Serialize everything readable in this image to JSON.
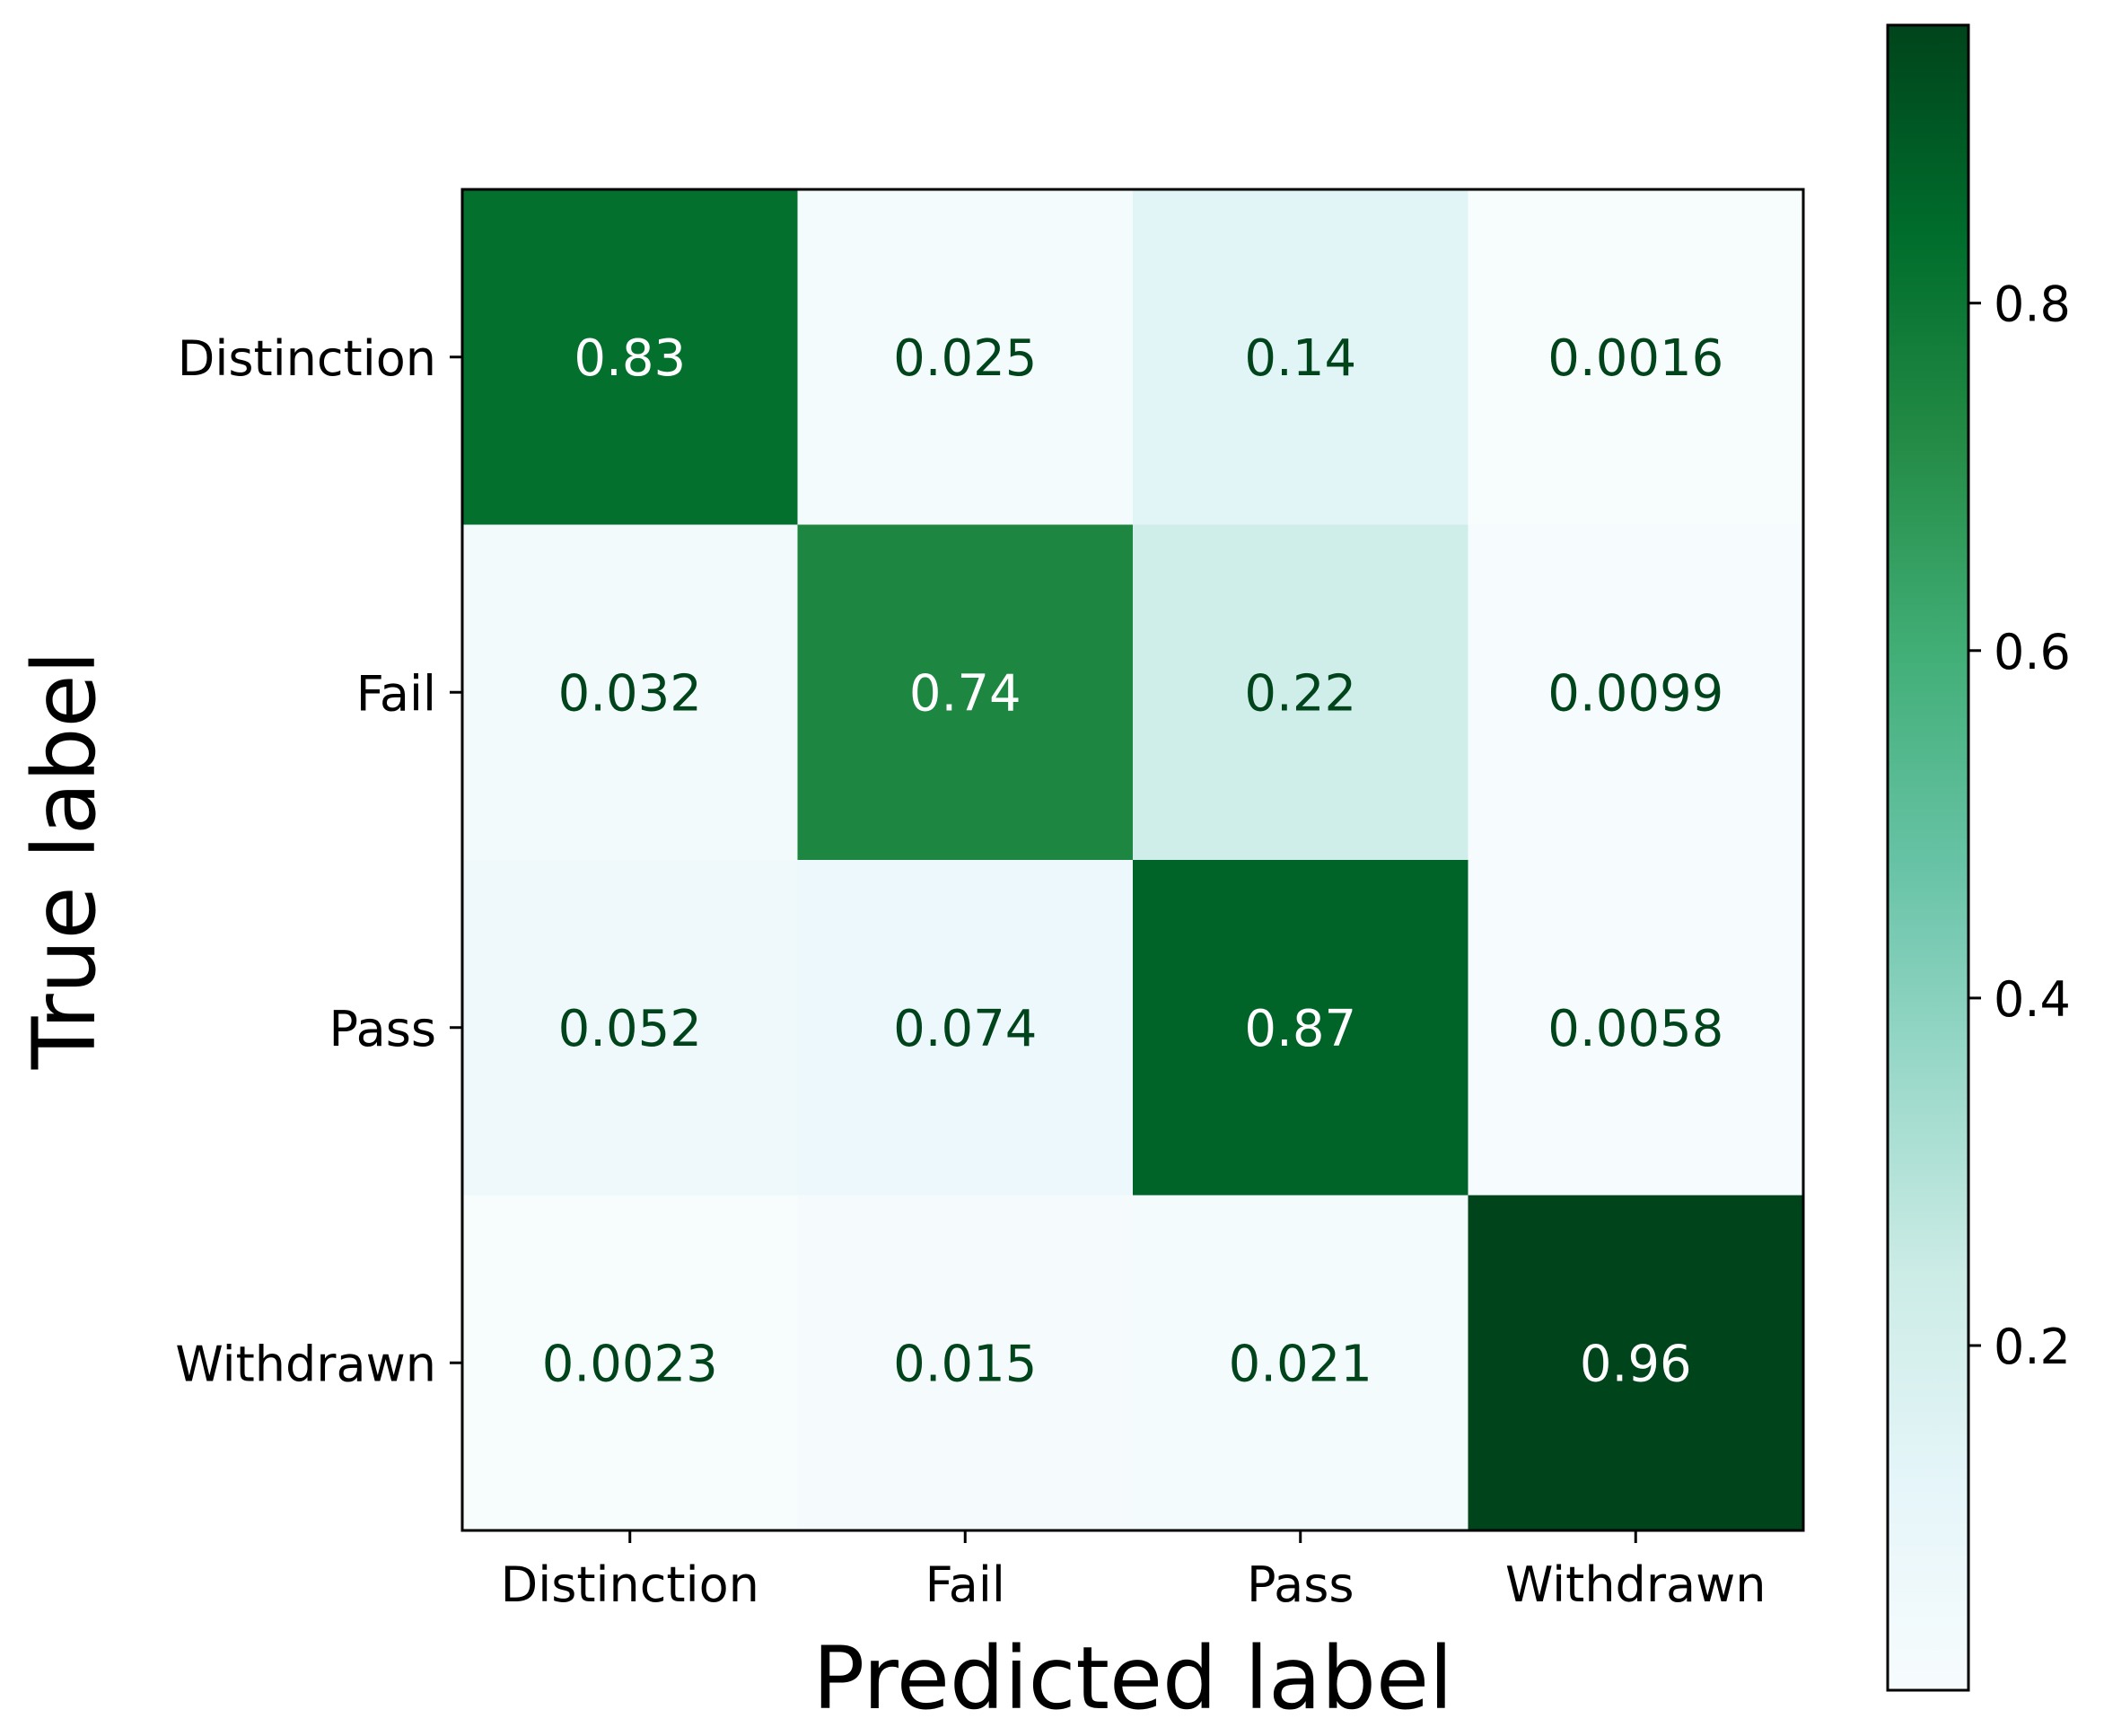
{
  "chart_data": {
    "type": "heatmap",
    "xlabel": "Predicted label",
    "ylabel": "True label",
    "x_categories": [
      "Distinction",
      "Fail",
      "Pass",
      "Withdrawn"
    ],
    "y_categories": [
      "Distinction",
      "Fail",
      "Pass",
      "Withdrawn"
    ],
    "values": [
      [
        0.83,
        0.025,
        0.14,
        0.0016
      ],
      [
        0.032,
        0.74,
        0.22,
        0.0099
      ],
      [
        0.052,
        0.074,
        0.87,
        0.0058
      ],
      [
        0.0023,
        0.015,
        0.021,
        0.96
      ]
    ],
    "value_labels": [
      [
        "0.83",
        "0.025",
        "0.14",
        "0.0016"
      ],
      [
        "0.032",
        "0.74",
        "0.22",
        "0.0099"
      ],
      [
        "0.052",
        "0.074",
        "0.87",
        "0.0058"
      ],
      [
        "0.0023",
        "0.015",
        "0.021",
        "0.96"
      ]
    ],
    "colorscale": "Greens-Blue (light blue-white to dark green)",
    "color_stops": [
      "#f7fcfd",
      "#e5f5f9",
      "#ccece6",
      "#99d8c9",
      "#66c2a4",
      "#41ae76",
      "#238b45",
      "#006d2c",
      "#00441b"
    ],
    "text_colors": {
      "light": "#ffffff",
      "dark": "#00441b"
    },
    "colorbar": {
      "range": [
        0.0016,
        0.96
      ],
      "ticks": [
        0.2,
        0.4,
        0.6,
        0.8
      ],
      "tick_labels": [
        "0.2",
        "0.4",
        "0.6",
        "0.8"
      ]
    },
    "grid": false
  }
}
